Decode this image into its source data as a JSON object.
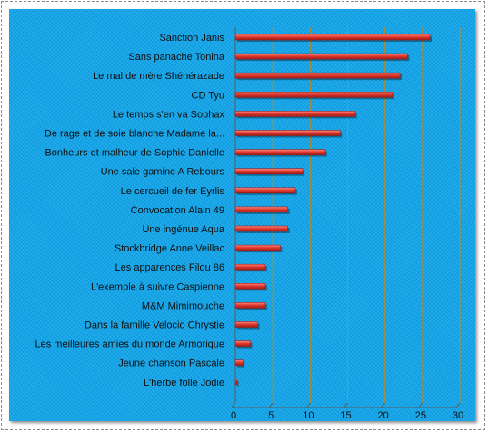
{
  "chart_data": {
    "type": "bar",
    "orientation": "horizontal",
    "categories": [
      "Sanction Janis",
      "Sans panache  Tonina",
      "Le mal de mère Shéhérazade",
      "CD Tyu",
      "Le temps s'en va Sophax",
      "De rage et de soie blanche  Madame la...",
      "Bonheurs et malheur de Sophie Danielle",
      "Une sale gamine A Rebours",
      "Le cercueil de fer Eyrlis",
      "Convocation Alain 49",
      "Une ingénue Aqua",
      "Stockbridge Anne Veillac",
      "Les apparences Filou 86",
      "L'exemple à suivre Caspienne",
      "M&M Mimimouche",
      "Dans la famille Velocio Chrystie",
      "Les meilleures amies du monde Armorique",
      "Jeune chanson Pascale",
      "L'herbe folle Jodie"
    ],
    "values": [
      26,
      23,
      22,
      21,
      16,
      14,
      12,
      9,
      8,
      7,
      7,
      6,
      4,
      4,
      4,
      3,
      2,
      1,
      0.2
    ],
    "title": "",
    "xlabel": "",
    "ylabel": "",
    "xlim": [
      0,
      30
    ],
    "xticks": [
      "0",
      "5",
      "10",
      "15",
      "20",
      "25",
      "30"
    ],
    "grid": true,
    "legend": "none",
    "colors": {
      "plot_background": "#12a5e8",
      "bar": "#e23a30",
      "bar_highlight": "#ff8f86",
      "bar_shadow": "#9e1c17",
      "gridline": "#b58a2a",
      "axis": "#5a5a5a"
    }
  }
}
